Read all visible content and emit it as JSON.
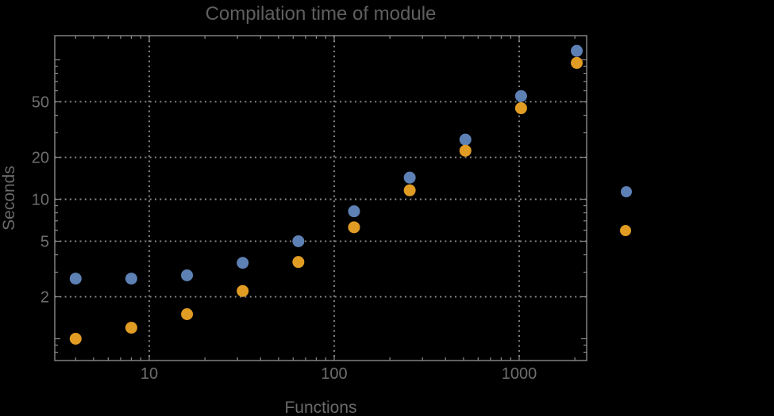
{
  "chart_data": {
    "type": "scatter",
    "title": "Compilation time of module",
    "xlabel": "Functions",
    "ylabel": "Seconds",
    "x_scale": "log",
    "y_scale": "log",
    "xlim": [
      3.09,
      2320
    ],
    "ylim": [
      0.7,
      149
    ],
    "grid": "dotted",
    "x_major_ticks": [
      10,
      100,
      1000
    ],
    "x_tick_labels": [
      "10",
      "100",
      "1000"
    ],
    "y_major_ticks": [
      2,
      5,
      10,
      20,
      50
    ],
    "y_tick_labels": [
      "2",
      "5",
      "10",
      "20",
      "50"
    ],
    "y_unlabeled_major_ticks": [
      1,
      100
    ],
    "x": [
      4,
      8,
      16,
      32,
      64,
      128,
      256,
      512,
      1024,
      2048
    ],
    "series": [
      {
        "name": "blue",
        "color": "#5e81b5",
        "values": [
          2.7,
          2.7,
          2.85,
          3.5,
          5.0,
          8.2,
          14.3,
          26.8,
          55,
          116
        ]
      },
      {
        "name": "orange",
        "color": "#e19c24",
        "values": [
          1.0,
          1.2,
          1.5,
          2.2,
          3.55,
          6.3,
          11.6,
          22.3,
          45,
          95
        ]
      }
    ],
    "legend": {
      "position": "right-outside",
      "labels_visible": false,
      "marker_colors": [
        "#5e81b5",
        "#e19c24"
      ]
    }
  },
  "colors": {
    "background": "#000000",
    "frame": "#8a8a8a",
    "grid": "#8a8a8a",
    "title_text": "#5f5f5f",
    "tick_label_text": "#6e6e6e",
    "axis_label_text": "#6a6a6a",
    "series_blue": "#5e81b5",
    "series_orange": "#e19c24"
  }
}
